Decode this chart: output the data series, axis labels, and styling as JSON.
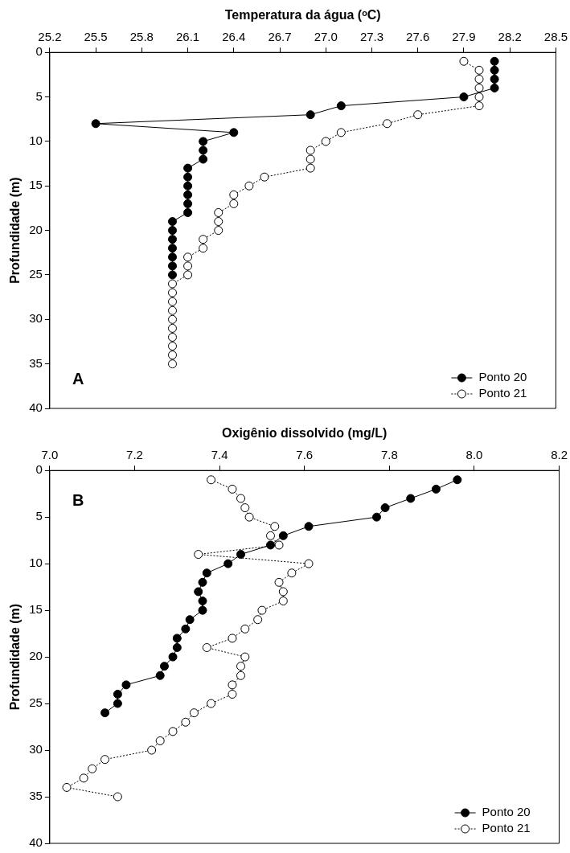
{
  "chart_data": [
    {
      "type": "line",
      "xlabel": "Temperatura da água (ᵒC)",
      "ylabel": "Profundidade (m)",
      "marker": "circle",
      "legend": "bottom right",
      "grid": false,
      "xlim": [
        25.2,
        28.5
      ],
      "xticks": [
        25.2,
        25.5,
        25.8,
        26.1,
        26.4,
        26.7,
        {
          "value": 27.0,
          "label": "27.0"
        },
        27.3,
        27.6,
        27.9,
        28.2,
        28.5
      ],
      "ylim": [
        40,
        0
      ],
      "yticks": [
        0,
        5,
        10,
        15,
        20,
        25,
        30,
        35,
        40
      ],
      "annotations": [
        "A"
      ],
      "series": [
        {
          "name": "Ponto 20",
          "color": "#000000",
          "line_style": "solid",
          "x": [
            28.1,
            28.1,
            28.1,
            28.1,
            27.9,
            27.1,
            26.9,
            25.5,
            26.4,
            26.2,
            26.2,
            26.2,
            26.1,
            26.1,
            26.1,
            26.1,
            26.1,
            26.1,
            26.0,
            26.0,
            26.0,
            26.0,
            26.0,
            26.0,
            26.0
          ],
          "values": [
            1,
            2,
            3,
            4,
            5,
            6,
            7,
            8,
            9,
            10,
            11,
            12,
            13,
            14,
            15,
            16,
            17,
            18,
            19,
            20,
            21,
            22,
            23,
            24,
            25
          ]
        },
        {
          "name": "Ponto 21",
          "color": "#000000",
          "line_style": "dotted",
          "x": [
            27.9,
            28.0,
            28.0,
            28.0,
            28.0,
            28.0,
            27.6,
            27.4,
            27.1,
            27.0,
            26.9,
            26.9,
            26.9,
            26.6,
            26.5,
            26.4,
            26.4,
            26.3,
            26.3,
            26.3,
            26.2,
            26.2,
            26.1,
            26.1,
            26.1,
            26.0,
            26.0,
            26.0,
            26.0,
            26.0,
            26.0,
            26.0,
            26.0,
            26.0,
            26.0
          ],
          "values": [
            1,
            2,
            3,
            4,
            5,
            6,
            7,
            8,
            9,
            10,
            11,
            12,
            13,
            14,
            15,
            16,
            17,
            18,
            19,
            20,
            21,
            22,
            23,
            24,
            25,
            26,
            27,
            28,
            29,
            30,
            31,
            32,
            33,
            34,
            35
          ]
        }
      ]
    },
    {
      "type": "line",
      "xlabel": "Oxigênio dissolvido (mg/L)",
      "ylabel": "Profundidade (m)",
      "marker": "circle",
      "legend": "bottom right",
      "grid": false,
      "xlim": [
        7.0,
        8.2
      ],
      "xticks": [
        {
          "value": 7.0,
          "label": "7.0"
        },
        7.2,
        7.4,
        7.6,
        7.8,
        {
          "value": 8.0,
          "label": "8.0"
        },
        8.2
      ],
      "ylim": [
        40,
        0
      ],
      "yticks": [
        0,
        5,
        10,
        15,
        20,
        25,
        30,
        35,
        40
      ],
      "annotations": [
        "B"
      ],
      "series": [
        {
          "name": "Ponto 20",
          "color": "#000000",
          "line_style": "solid",
          "x": [
            7.96,
            7.91,
            7.85,
            7.79,
            7.77,
            7.61,
            7.55,
            7.52,
            7.45,
            7.42,
            7.37,
            7.36,
            7.35,
            7.36,
            7.36,
            7.33,
            7.32,
            7.3,
            7.3,
            7.29,
            7.27,
            7.26,
            7.18,
            7.16,
            7.16,
            7.13
          ],
          "values": [
            1,
            2,
            3,
            4,
            5,
            6,
            7,
            8,
            9,
            10,
            11,
            12,
            13,
            14,
            15,
            16,
            17,
            18,
            19,
            20,
            21,
            22,
            23,
            24,
            25,
            26
          ]
        },
        {
          "name": "Ponto 21",
          "color": "#000000",
          "line_style": "dotted",
          "x": [
            7.38,
            7.43,
            7.45,
            7.46,
            7.47,
            7.53,
            7.52,
            7.54,
            7.35,
            7.61,
            7.57,
            7.54,
            7.55,
            7.55,
            7.5,
            7.49,
            7.46,
            7.43,
            7.37,
            7.46,
            7.45,
            7.45,
            7.43,
            7.43,
            7.38,
            7.34,
            7.32,
            7.29,
            7.26,
            7.24,
            7.13,
            7.1,
            7.08,
            7.04,
            7.16
          ],
          "values": [
            1,
            2,
            3,
            4,
            5,
            6,
            7,
            8,
            9,
            10,
            11,
            12,
            13,
            14,
            15,
            16,
            17,
            18,
            19,
            20,
            21,
            22,
            23,
            24,
            25,
            26,
            27,
            28,
            29,
            30,
            31,
            32,
            33,
            34,
            35
          ]
        }
      ]
    }
  ]
}
